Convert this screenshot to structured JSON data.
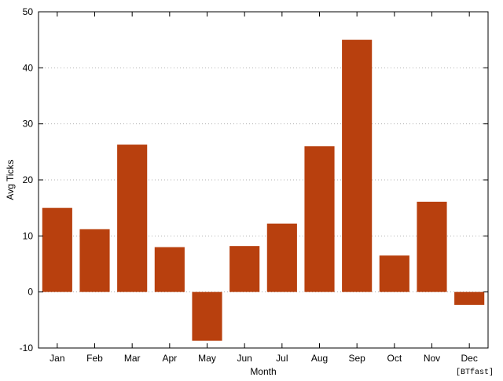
{
  "chart_data": {
    "type": "bar",
    "categories": [
      "Jan",
      "Feb",
      "Mar",
      "Apr",
      "May",
      "Jun",
      "Jul",
      "Aug",
      "Sep",
      "Oct",
      "Nov",
      "Dec"
    ],
    "values": [
      15,
      11.2,
      26.3,
      8,
      -8.7,
      8.2,
      12.2,
      26,
      45,
      6.5,
      16.1,
      -2.3
    ],
    "title": "",
    "xlabel": "Month",
    "ylabel": "Avg Ticks",
    "ylim": [
      -10,
      50
    ],
    "yticks": [
      -10,
      0,
      10,
      20,
      30,
      40,
      50
    ],
    "grid": "horizontal dotted",
    "legend": "none",
    "bar_color": "#b8400e",
    "annotation": "[BTfast]"
  }
}
